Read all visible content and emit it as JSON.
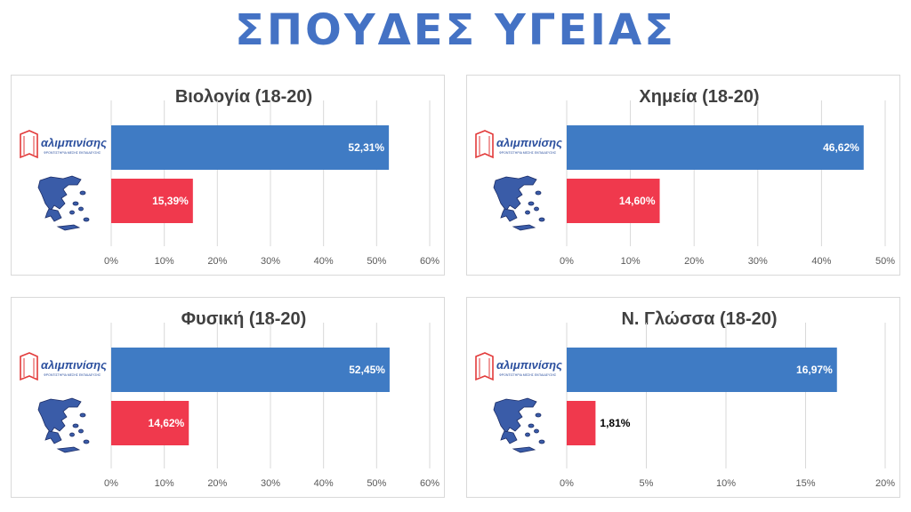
{
  "page": {
    "title": "ΣΠΟΥΔΕΣ ΥΓΕΙΑΣ"
  },
  "legend_icons": {
    "top_bar": "alimpinisis-logo-icon",
    "bottom_bar": "greece-map-icon"
  },
  "brand": {
    "name": "αλιμπινίσης",
    "tagline": "ΦΡΟΝΤΙΣΤΗΡΙΑ ΜΕΣΗΣ ΕΚΠΑΙΔΕΥΣΗΣ"
  },
  "colors": {
    "title": "#4472c4",
    "school_bar": "#3f7bc4",
    "national_bar": "#f0394d",
    "grid": "#d9d9d9"
  },
  "chart_data": [
    {
      "type": "bar",
      "orientation": "horizontal",
      "title": "Βιολογία (18-20)",
      "xlim": [
        0,
        0.6
      ],
      "ticks": [
        0,
        0.1,
        0.2,
        0.3,
        0.4,
        0.5,
        0.6
      ],
      "tick_labels": [
        "0%",
        "10%",
        "20%",
        "30%",
        "40%",
        "50%",
        "60%"
      ],
      "values": [
        0.5231,
        0.1539
      ],
      "value_labels": [
        "52,31%",
        "15,39%"
      ]
    },
    {
      "type": "bar",
      "orientation": "horizontal",
      "title": "Χημεία (18-20)",
      "xlim": [
        0,
        0.5
      ],
      "ticks": [
        0,
        0.1,
        0.2,
        0.3,
        0.4,
        0.5
      ],
      "tick_labels": [
        "0%",
        "10%",
        "20%",
        "30%",
        "40%",
        "50%"
      ],
      "values": [
        0.4662,
        0.146
      ],
      "value_labels": [
        "46,62%",
        "14,60%"
      ]
    },
    {
      "type": "bar",
      "orientation": "horizontal",
      "title": "Φυσική (18-20)",
      "xlim": [
        0,
        0.6
      ],
      "ticks": [
        0,
        0.1,
        0.2,
        0.3,
        0.4,
        0.5,
        0.6
      ],
      "tick_labels": [
        "0%",
        "10%",
        "20%",
        "30%",
        "40%",
        "50%",
        "60%"
      ],
      "values": [
        0.5245,
        0.1462
      ],
      "value_labels": [
        "52,45%",
        "14,62%"
      ]
    },
    {
      "type": "bar",
      "orientation": "horizontal",
      "title": "Ν. Γλώσσα (18-20)",
      "xlim": [
        0,
        0.2
      ],
      "ticks": [
        0,
        0.05,
        0.1,
        0.15,
        0.2
      ],
      "tick_labels": [
        "0%",
        "5%",
        "10%",
        "15%",
        "20%"
      ],
      "values": [
        0.1697,
        0.0181
      ],
      "value_labels": [
        "16,97%",
        "1,81%"
      ]
    }
  ]
}
